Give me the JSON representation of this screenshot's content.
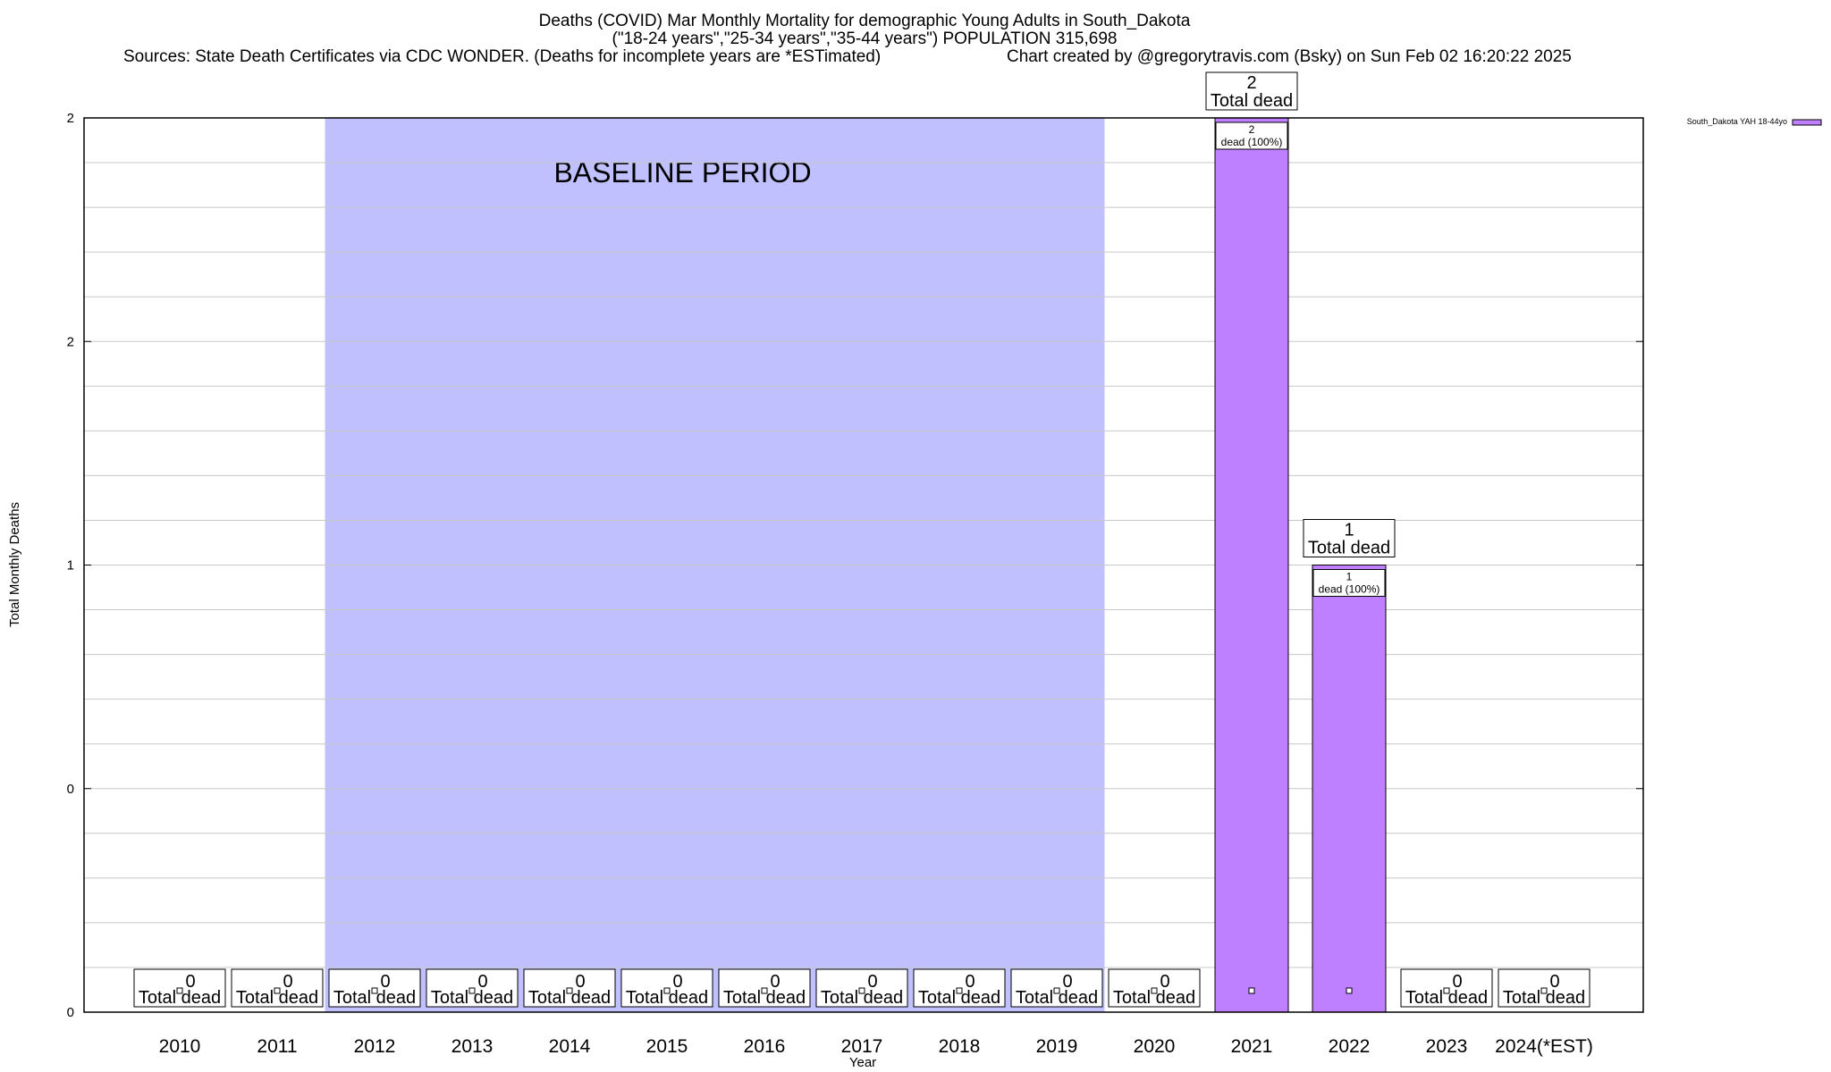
{
  "chart_data": {
    "type": "bar",
    "title": "Deaths (COVID) Mar Monthly Mortality for demographic Young Adults in South_Dakota",
    "subtitle": "(\"18-24 years\",\"25-34 years\",\"35-44 years\") POPULATION 315,698",
    "sources": "Sources: State Death Certificates via CDC WONDER. (Deaths for incomplete years are *ESTimated)",
    "credit": "Chart created by @gregorytravis.com (Bsky) on Sun Feb 02 16:20:22 2025",
    "xlabel": "Year",
    "ylabel": "Total Monthly Deaths",
    "ylim": [
      0,
      2
    ],
    "y_tick_labels": [
      "0",
      "0",
      "1",
      "2",
      "2"
    ],
    "categories": [
      "2010",
      "2011",
      "2012",
      "2013",
      "2014",
      "2015",
      "2016",
      "2017",
      "2018",
      "2019",
      "2020",
      "2021",
      "2022",
      "2023",
      "2024(*EST)"
    ],
    "series": [
      {
        "name": "South_Dakota YAH 18-44yo",
        "color": "#bf80ff",
        "values": [
          0,
          0,
          0,
          0,
          0,
          0,
          0,
          0,
          0,
          0,
          0,
          2,
          1,
          0,
          0
        ]
      }
    ],
    "total_labels": [
      "0",
      "0",
      "0",
      "0",
      "0",
      "0",
      "0",
      "0",
      "0",
      "0",
      "0",
      "2",
      "1",
      "0",
      "0"
    ],
    "total_caption": "Total dead",
    "inner_labels": [
      {
        "category": "2021",
        "count": "2",
        "text": "dead (100%)"
      },
      {
        "category": "2022",
        "count": "1",
        "text": "dead (100%)"
      }
    ],
    "baseline": {
      "label": "BASELINE PERIOD",
      "from": "2012",
      "to": "2019",
      "color": "#c0c0ff"
    },
    "grid": true,
    "legend_position": "top-right"
  }
}
